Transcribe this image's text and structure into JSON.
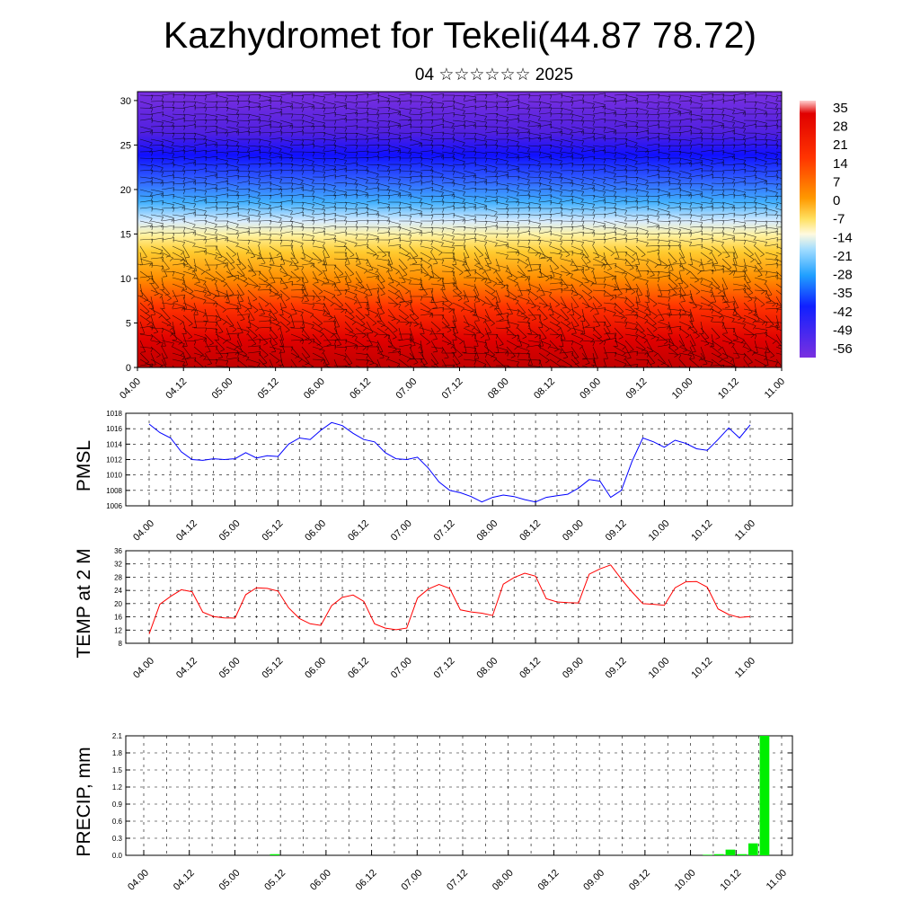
{
  "page": {
    "title": "Kazhydromet for Tekeli(44.87 78.72)",
    "subtitle": "04 ☆☆☆☆☆☆ 2025"
  },
  "colors": {
    "background": "#ffffff",
    "pmsl_line": "#0000ff",
    "temp_line": "#ff0000",
    "precip_bar": "#00ee00",
    "axis": "#000000",
    "grid": "#000000"
  },
  "time_ticks": [
    "04.00",
    "04.12",
    "05.00",
    "05.12",
    "06.00",
    "06.12",
    "07.00",
    "07.12",
    "08.00",
    "08.12",
    "09.00",
    "09.12",
    "10.00",
    "10.12",
    "11.00"
  ],
  "chart_data": [
    {
      "type": "heatmap",
      "name": "vertical cross-section",
      "title": "",
      "xlabel": "",
      "ylabel": "",
      "x_ticks": [
        "04.00",
        "04.12",
        "05.00",
        "05.12",
        "06.00",
        "06.12",
        "07.00",
        "07.12",
        "08.00",
        "08.12",
        "09.00",
        "09.12",
        "10.00",
        "10.12",
        "11.00"
      ],
      "y_ticks": [
        0,
        5,
        10,
        15,
        20,
        25,
        30
      ],
      "ylim": [
        0,
        31
      ],
      "colorbar_labels": [
        "35",
        "28",
        "21",
        "14",
        "7",
        "0",
        "-7",
        "-14",
        "-21",
        "-28",
        "-35",
        "-42",
        "-49",
        "-56"
      ],
      "wind_barbs": true
    },
    {
      "type": "line",
      "name": "pmsl",
      "title": "",
      "xlabel": "",
      "ylabel": "PMSL",
      "ylim": [
        1006,
        1018
      ],
      "y_ticks": [
        1006,
        1008,
        1010,
        1012,
        1014,
        1016,
        1018
      ],
      "x_ticks": [
        "04.00",
        "04.12",
        "05.00",
        "05.12",
        "06.00",
        "06.12",
        "07.00",
        "07.12",
        "08.00",
        "08.12",
        "09.00",
        "09.12",
        "10.00",
        "10.12",
        "11.00"
      ],
      "grid": true,
      "values": [
        1016.6,
        1015.5,
        1014.8,
        1013.0,
        1012.0,
        1011.9,
        1012.1,
        1012.0,
        1012.1,
        1012.9,
        1012.2,
        1012.5,
        1012.4,
        1014.0,
        1014.8,
        1014.6,
        1015.8,
        1016.8,
        1016.4,
        1015.4,
        1014.6,
        1014.3,
        1012.9,
        1012.1,
        1012.0,
        1012.3,
        1010.9,
        1009.1,
        1008.0,
        1007.7,
        1007.2,
        1006.5,
        1007.1,
        1007.4,
        1007.2,
        1006.8,
        1006.5,
        1007.1,
        1007.3,
        1007.5,
        1008.3,
        1009.4,
        1009.2,
        1007.1,
        1008.0,
        1011.8,
        1014.8,
        1014.3,
        1013.6,
        1014.5,
        1014.1,
        1013.4,
        1013.2,
        1014.6,
        1016.1,
        1014.8,
        1016.5
      ]
    },
    {
      "type": "line",
      "name": "temp2m",
      "title": "",
      "xlabel": "",
      "ylabel": "TEMP at 2 M",
      "ylim": [
        8,
        36
      ],
      "y_ticks": [
        8,
        12,
        16,
        20,
        24,
        28,
        32,
        36
      ],
      "x_ticks": [
        "04.00",
        "04.12",
        "05.00",
        "05.12",
        "06.00",
        "06.12",
        "07.00",
        "07.12",
        "08.00",
        "08.12",
        "09.00",
        "09.12",
        "10.00",
        "10.12",
        "11.00"
      ],
      "grid": true,
      "values": [
        10.8,
        19.8,
        22.2,
        24.2,
        23.6,
        17.4,
        16.1,
        15.7,
        15.6,
        22.7,
        24.8,
        24.6,
        23.8,
        18.7,
        15.5,
        13.9,
        13.4,
        19.4,
        21.9,
        22.6,
        20.7,
        13.9,
        12.6,
        12.1,
        12.6,
        21.7,
        24.4,
        25.8,
        24.6,
        18.1,
        17.5,
        17.1,
        16.4,
        25.9,
        27.9,
        29.2,
        28.3,
        21.5,
        20.5,
        20.3,
        20.2,
        28.9,
        30.5,
        31.7,
        27.4,
        23.5,
        20.0,
        19.8,
        19.5,
        24.8,
        26.6,
        26.7,
        25.0,
        18.4,
        16.7,
        15.8,
        16.1
      ]
    },
    {
      "type": "bar",
      "name": "precip",
      "title": "",
      "xlabel": "",
      "ylabel": "PRECIP, mm",
      "ylim": [
        0,
        2.1
      ],
      "y_ticks": [
        "0.0",
        "0.3",
        "0.6",
        "0.9",
        "1.2",
        "1.5",
        "1.8",
        "2.1"
      ],
      "x_ticks": [
        "04.00",
        "04.12",
        "05.00",
        "05.12",
        "06.00",
        "06.12",
        "07.00",
        "07.12",
        "08.00",
        "08.12",
        "09.00",
        "09.12",
        "10.00",
        "10.12",
        "11.00"
      ],
      "grid": true,
      "bars": [
        {
          "step": 11,
          "value": 0.02
        },
        {
          "step": 49,
          "value": 0.01
        },
        {
          "step": 50,
          "value": 0.02
        },
        {
          "step": 51,
          "value": 0.1
        },
        {
          "step": 52,
          "value": 0.02
        },
        {
          "step": 53,
          "value": 0.21
        },
        {
          "step": 54,
          "value": 2.1
        }
      ]
    }
  ]
}
